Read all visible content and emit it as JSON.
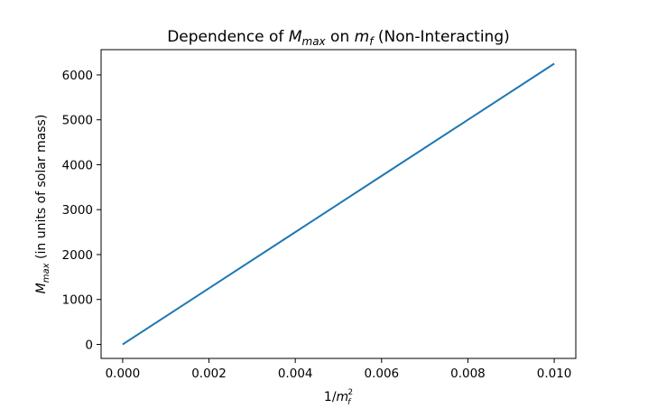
{
  "chart_data": {
    "type": "line",
    "title_parts": [
      "Dependence of ",
      "M",
      "max",
      " on ",
      "m",
      "f",
      " (Non-Interacting)"
    ],
    "xlabel_parts": [
      "1/",
      "m",
      "f",
      "2"
    ],
    "ylabel_parts": [
      "M",
      "max",
      " (in units of solar mass)"
    ],
    "xlim": [
      -0.0005,
      0.0105
    ],
    "ylim": [
      -312,
      6562
    ],
    "xticks": [
      0.0,
      0.002,
      0.004,
      0.006,
      0.008,
      0.01
    ],
    "xtick_labels": [
      "0.000",
      "0.002",
      "0.004",
      "0.006",
      "0.008",
      "0.010"
    ],
    "yticks": [
      0,
      1000,
      2000,
      3000,
      4000,
      5000,
      6000
    ],
    "ytick_labels": [
      "0",
      "1000",
      "2000",
      "3000",
      "4000",
      "5000",
      "6000"
    ],
    "grid": false,
    "series": [
      {
        "color": "#1f77b4",
        "x": [
          0.0,
          0.002,
          0.004,
          0.006,
          0.008,
          0.01
        ],
        "y": [
          0,
          1250,
          2500,
          3750,
          5000,
          6250
        ]
      }
    ]
  }
}
